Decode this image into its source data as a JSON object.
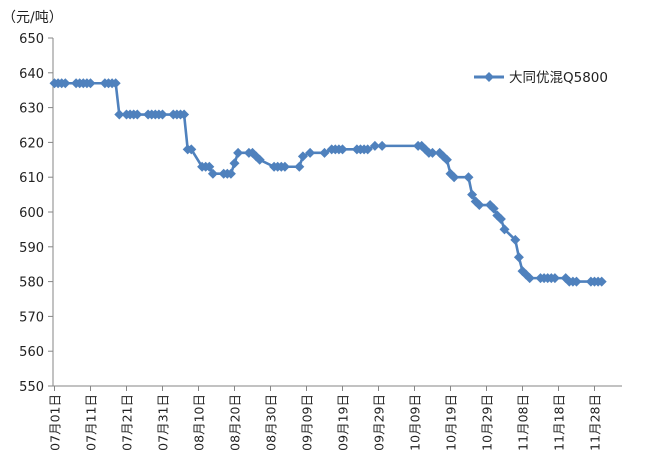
{
  "chart_data": {
    "type": "line",
    "unit_label": "（元/吨）",
    "ylim": [
      550,
      650
    ],
    "y_ticks": [
      550,
      560,
      570,
      580,
      590,
      600,
      610,
      620,
      630,
      640,
      650
    ],
    "x_range": [
      "2023-07-01",
      "2023-12-01"
    ],
    "x_tick_labels": [
      "07月01日",
      "07月11日",
      "07月21日",
      "07月31日",
      "08月10日",
      "08月20日",
      "08月30日",
      "09月09日",
      "09月19日",
      "09月29日",
      "10月09日",
      "10月19日",
      "10月29日",
      "11月08日",
      "11月18日",
      "11月28日"
    ],
    "x_tick_dates": [
      "2023-07-01",
      "2023-07-11",
      "2023-07-21",
      "2023-07-31",
      "2023-08-10",
      "2023-08-20",
      "2023-08-30",
      "2023-09-09",
      "2023-09-19",
      "2023-09-29",
      "2023-10-09",
      "2023-10-19",
      "2023-10-29",
      "2023-11-08",
      "2023-11-18",
      "2023-11-28"
    ],
    "grid": false,
    "legend_position": "top-right",
    "series": [
      {
        "name": "大同优混Q5800",
        "color": "#4F81BD",
        "points": [
          [
            "2023-07-01",
            637
          ],
          [
            "2023-07-02",
            637
          ],
          [
            "2023-07-03",
            637
          ],
          [
            "2023-07-04",
            637
          ],
          [
            "2023-07-07",
            637
          ],
          [
            "2023-07-08",
            637
          ],
          [
            "2023-07-09",
            637
          ],
          [
            "2023-07-10",
            637
          ],
          [
            "2023-07-11",
            637
          ],
          [
            "2023-07-15",
            637
          ],
          [
            "2023-07-16",
            637
          ],
          [
            "2023-07-17",
            637
          ],
          [
            "2023-07-18",
            637
          ],
          [
            "2023-07-19",
            628
          ],
          [
            "2023-07-21",
            628
          ],
          [
            "2023-07-22",
            628
          ],
          [
            "2023-07-23",
            628
          ],
          [
            "2023-07-24",
            628
          ],
          [
            "2023-07-27",
            628
          ],
          [
            "2023-07-28",
            628
          ],
          [
            "2023-07-29",
            628
          ],
          [
            "2023-07-30",
            628
          ],
          [
            "2023-07-31",
            628
          ],
          [
            "2023-08-03",
            628
          ],
          [
            "2023-08-04",
            628
          ],
          [
            "2023-08-05",
            628
          ],
          [
            "2023-08-06",
            628
          ],
          [
            "2023-08-07",
            618
          ],
          [
            "2023-08-08",
            618
          ],
          [
            "2023-08-11",
            613
          ],
          [
            "2023-08-12",
            613
          ],
          [
            "2023-08-13",
            613
          ],
          [
            "2023-08-14",
            611
          ],
          [
            "2023-08-17",
            611
          ],
          [
            "2023-08-18",
            611
          ],
          [
            "2023-08-19",
            611
          ],
          [
            "2023-08-20",
            614
          ],
          [
            "2023-08-21",
            617
          ],
          [
            "2023-08-24",
            617
          ],
          [
            "2023-08-25",
            617
          ],
          [
            "2023-08-26",
            616
          ],
          [
            "2023-08-27",
            615
          ],
          [
            "2023-08-31",
            613
          ],
          [
            "2023-09-01",
            613
          ],
          [
            "2023-09-02",
            613
          ],
          [
            "2023-09-03",
            613
          ],
          [
            "2023-09-07",
            613
          ],
          [
            "2023-09-08",
            616
          ],
          [
            "2023-09-10",
            617
          ],
          [
            "2023-09-14",
            617
          ],
          [
            "2023-09-16",
            618
          ],
          [
            "2023-09-17",
            618
          ],
          [
            "2023-09-18",
            618
          ],
          [
            "2023-09-19",
            618
          ],
          [
            "2023-09-23",
            618
          ],
          [
            "2023-09-24",
            618
          ],
          [
            "2023-09-25",
            618
          ],
          [
            "2023-09-26",
            618
          ],
          [
            "2023-09-28",
            619
          ],
          [
            "2023-09-30",
            619
          ],
          [
            "2023-10-10",
            619
          ],
          [
            "2023-10-11",
            619
          ],
          [
            "2023-10-12",
            618
          ],
          [
            "2023-10-13",
            617
          ],
          [
            "2023-10-14",
            617
          ],
          [
            "2023-10-16",
            617
          ],
          [
            "2023-10-17",
            616
          ],
          [
            "2023-10-18",
            615
          ],
          [
            "2023-10-19",
            611
          ],
          [
            "2023-10-20",
            610
          ],
          [
            "2023-10-24",
            610
          ],
          [
            "2023-10-25",
            605
          ],
          [
            "2023-10-26",
            603
          ],
          [
            "2023-10-27",
            602
          ],
          [
            "2023-10-30",
            602
          ],
          [
            "2023-10-31",
            601
          ],
          [
            "2023-11-01",
            599
          ],
          [
            "2023-11-02",
            598
          ],
          [
            "2023-11-03",
            595
          ],
          [
            "2023-11-06",
            592
          ],
          [
            "2023-11-07",
            587
          ],
          [
            "2023-11-08",
            583
          ],
          [
            "2023-11-09",
            582
          ],
          [
            "2023-11-10",
            581
          ],
          [
            "2023-11-13",
            581
          ],
          [
            "2023-11-14",
            581
          ],
          [
            "2023-11-15",
            581
          ],
          [
            "2023-11-16",
            581
          ],
          [
            "2023-11-17",
            581
          ],
          [
            "2023-11-20",
            581
          ],
          [
            "2023-11-21",
            580
          ],
          [
            "2023-11-22",
            580
          ],
          [
            "2023-11-23",
            580
          ],
          [
            "2023-11-27",
            580
          ],
          [
            "2023-11-28",
            580
          ],
          [
            "2023-11-29",
            580
          ],
          [
            "2023-11-30",
            580
          ]
        ]
      }
    ]
  }
}
